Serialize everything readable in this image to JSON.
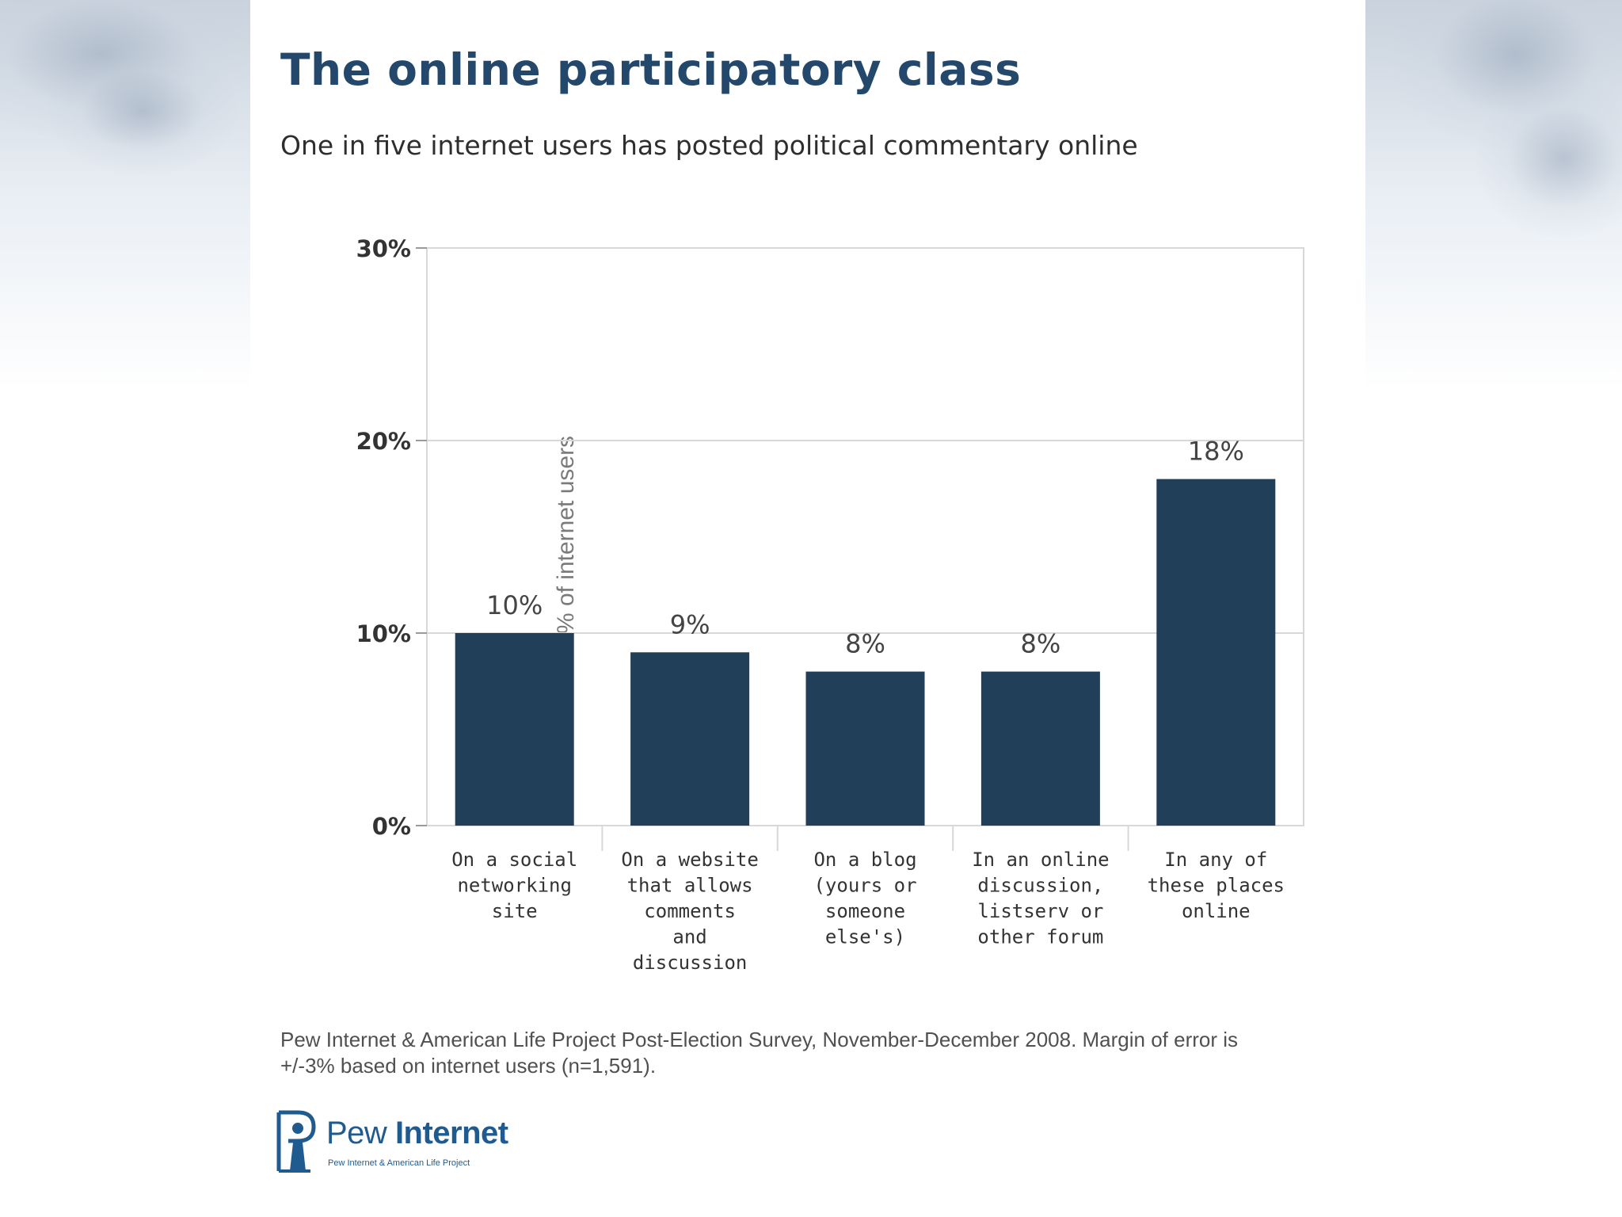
{
  "slide": {
    "title": "The online participatory class",
    "subtitle": "One in five internet users has posted political commentary online",
    "source_line1": "Pew Internet & American Life Project Post-Election Survey, November-December 2008. Margin of error is",
    "source_line2": "+/-3% based on internet users (n=1,591).",
    "logo_pew": "Pew",
    "logo_internet": "Internet",
    "logo_tagline": "Pew Internet & American Life Project"
  },
  "colors": {
    "bar": "#213f59",
    "title": "#23486b",
    "grid": "#d8d8d8"
  },
  "chart_data": {
    "type": "bar",
    "categories": [
      [
        "On a social",
        "networking",
        "site"
      ],
      [
        "On a website",
        "that allows",
        "comments",
        "and",
        "discussion"
      ],
      [
        "On a blog",
        "(yours or",
        "someone",
        "else's)"
      ],
      [
        "In an online",
        "discussion,",
        "listserv or",
        "other forum"
      ],
      [
        "In any of",
        "these places",
        "online"
      ]
    ],
    "values": [
      10,
      9,
      8,
      8,
      18
    ],
    "value_labels": [
      "10%",
      "9%",
      "8%",
      "8%",
      "18%"
    ],
    "ylabel": "% of internet users",
    "ylim": [
      0,
      30
    ],
    "yticks": [
      0,
      10,
      20,
      30
    ],
    "ytick_labels": [
      "0%",
      "10%",
      "20%",
      "30%"
    ],
    "grid": true
  }
}
